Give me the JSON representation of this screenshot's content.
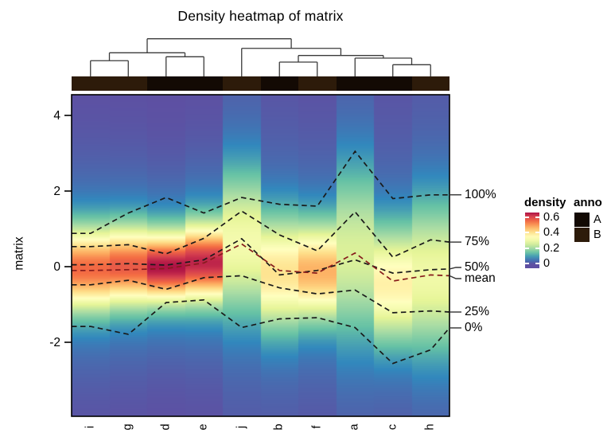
{
  "title": "Density heatmap of matrix",
  "y_axis": {
    "label": "matrix",
    "ticks": [
      "4",
      "2",
      "0",
      "-2"
    ]
  },
  "legend_density": {
    "title": "density",
    "tick_labels": [
      "0.6",
      "0.4",
      "0.2",
      "0"
    ],
    "tick_values": [
      0.6,
      0.4,
      0.2,
      0
    ]
  },
  "legend_anno": {
    "title": "anno",
    "items": [
      {
        "label": "A",
        "color": "#130a04"
      },
      {
        "label": "B",
        "color": "#2d1b0a"
      }
    ]
  },
  "chart_data": {
    "type": "heatmap",
    "subtype": "column-density-heatmap",
    "columns": [
      "i",
      "g",
      "d",
      "e",
      "j",
      "b",
      "f",
      "a",
      "c",
      "h"
    ],
    "column_annotation": {
      "i": "B",
      "g": "B",
      "d": "A",
      "e": "A",
      "j": "B",
      "b": "A",
      "f": "B",
      "a": "A",
      "c": "A",
      "h": "B"
    },
    "ylim": [
      -3.95,
      4.55
    ],
    "yticks": [
      4,
      2,
      0,
      -2
    ],
    "density_max": 0.68,
    "colormap": [
      "#5E4FA2",
      "#3288BD",
      "#66C2A5",
      "#ABDDA4",
      "#E6F598",
      "#FFFFBF",
      "#FEE08B",
      "#FDAE61",
      "#F46D43",
      "#D53E4F",
      "#9E0142"
    ],
    "density_profiles": [
      {
        "column": "i",
        "mean": -0.05,
        "sd": 0.73,
        "peak": 0.55
      },
      {
        "column": "g",
        "mean": 0.02,
        "sd": 0.7,
        "peak": 0.57
      },
      {
        "column": "d",
        "mean": 0.0,
        "sd": 0.62,
        "peak": 0.66
      },
      {
        "column": "e",
        "mean": 0.12,
        "sd": 0.68,
        "peak": 0.64
      },
      {
        "column": "j",
        "mean": 0.62,
        "sd": 1.3,
        "peak": 0.31
      },
      {
        "column": "b",
        "mean": -0.15,
        "sd": 1.0,
        "peak": 0.4
      },
      {
        "column": "f",
        "mean": -0.12,
        "sd": 0.86,
        "peak": 0.47
      },
      {
        "column": "a",
        "mean": 0.35,
        "sd": 1.55,
        "peak": 0.26
      },
      {
        "column": "c",
        "mean": -0.45,
        "sd": 1.05,
        "peak": 0.37
      },
      {
        "column": "h",
        "mean": -0.25,
        "sd": 1.35,
        "peak": 0.3
      }
    ],
    "quantile_lines": [
      {
        "name": "100%",
        "color": "#1a1a1a",
        "values": [
          0.88,
          1.42,
          1.83,
          1.42,
          1.83,
          1.65,
          1.6,
          3.05,
          1.8,
          1.9
        ],
        "right_end": 1.9
      },
      {
        "name": "75%",
        "color": "#1a1a1a",
        "values": [
          0.53,
          0.58,
          0.34,
          0.75,
          1.47,
          0.84,
          0.42,
          1.45,
          0.25,
          0.71
        ],
        "right_end": 0.65
      },
      {
        "name": "50%",
        "color": "#1a1a1a",
        "values": [
          0.05,
          0.08,
          0.04,
          0.18,
          0.74,
          -0.22,
          -0.1,
          0.18,
          -0.17,
          -0.08
        ],
        "right_end": -0.06
      },
      {
        "name": "mean",
        "color": "#871c1c",
        "values": [
          -0.1,
          -0.08,
          -0.05,
          0.1,
          0.6,
          -0.1,
          -0.17,
          0.36,
          -0.38,
          -0.22
        ],
        "right_end": -0.24
      },
      {
        "name": "25%",
        "color": "#1a1a1a",
        "values": [
          -0.48,
          -0.36,
          -0.6,
          -0.29,
          -0.24,
          -0.56,
          -0.72,
          -0.62,
          -1.22,
          -1.17
        ],
        "right_end": -1.2
      },
      {
        "name": "0%",
        "color": "#1a1a1a",
        "values": [
          -1.58,
          -1.79,
          -0.95,
          -0.88,
          -1.61,
          -1.38,
          -1.35,
          -1.61,
          -2.56,
          -2.2
        ],
        "right_end": -1.62
      }
    ],
    "right_axis_labels": [
      "100%",
      "75%",
      "50%",
      "mean",
      "25%",
      "0%"
    ],
    "dendrogram": {
      "h": 1.0,
      "children": [
        {
          "h": 0.628,
          "children": [
            {
              "h": 0.417,
              "children": [
                {
                  "leaf": "i"
                },
                {
                  "leaf": "g"
                }
              ]
            },
            {
              "h": 0.522,
              "children": [
                {
                  "leaf": "d"
                },
                {
                  "leaf": "e"
                }
              ]
            }
          ]
        },
        {
          "h": 0.746,
          "children": [
            {
              "leaf": "j"
            },
            {
              "h": 0.556,
              "children": [
                {
                  "h": 0.381,
                  "children": [
                    {
                      "leaf": "b"
                    },
                    {
                      "leaf": "f"
                    }
                  ]
                },
                {
                  "h": 0.486,
                  "children": [
                    {
                      "leaf": "a"
                    },
                    {
                      "h": 0.311,
                      "children": [
                        {
                          "leaf": "c"
                        },
                        {
                          "leaf": "h"
                        }
                      ]
                    }
                  ]
                }
              ]
            }
          ]
        }
      ]
    }
  }
}
